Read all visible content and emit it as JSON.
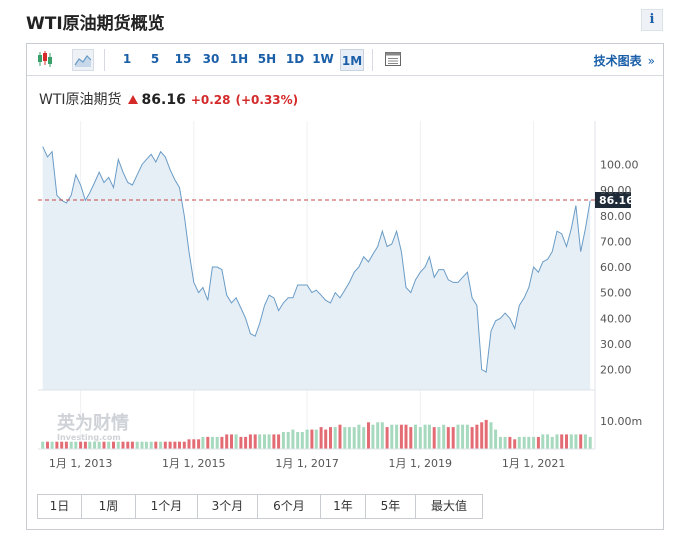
{
  "page": {
    "title": "WTI原油期货概览",
    "info_glyph": "i"
  },
  "toolbar": {
    "intervals": [
      "1",
      "5",
      "15",
      "30",
      "1H",
      "5H",
      "1D",
      "1W",
      "1M"
    ],
    "selected_interval": "1M",
    "tech_chart_label": "技术图表",
    "tech_chart_chevron": "»"
  },
  "quote": {
    "name": "WTI原油期货",
    "price": "86.16",
    "change": "+0.28",
    "change_pct": "(+0.33%)",
    "direction": "up",
    "up_color": "#d42a2a"
  },
  "watermark": {
    "logo_text": "英为财情",
    "sub_text": "Investing.com"
  },
  "ranges": [
    "1日",
    "1周",
    "1个月",
    "3个月",
    "6个月",
    "1年",
    "5年",
    "最大值"
  ],
  "chart_data": {
    "type": "area",
    "title": "",
    "xlabel": "",
    "ylabel": "",
    "ylim": [
      12,
      117
    ],
    "y_ticks": [
      "100.00",
      "90.00",
      "80.00",
      "70.00",
      "60.00",
      "50.00",
      "40.00",
      "30.00",
      "20.00"
    ],
    "y_tick_values": [
      100,
      90,
      80,
      70,
      60,
      50,
      40,
      30,
      20
    ],
    "x_tick_labels": [
      "1月 1, 2013",
      "1月 1, 2015",
      "1月 1, 2017",
      "1月 1, 2019",
      "1月 1, 2021"
    ],
    "x_tick_dates": [
      "2013-01-01",
      "2015-01-01",
      "2017-01-01",
      "2019-01-01",
      "2021-01-01"
    ],
    "x_range": [
      "2012-04-01",
      "2022-02-01"
    ],
    "price_series": {
      "dates": [
        "2012-05-01",
        "2012-06-01",
        "2012-07-01",
        "2012-08-01",
        "2012-09-01",
        "2012-10-01",
        "2012-11-01",
        "2012-12-01",
        "2013-01-01",
        "2013-02-01",
        "2013-03-01",
        "2013-04-01",
        "2013-05-01",
        "2013-06-01",
        "2013-07-01",
        "2013-08-01",
        "2013-09-01",
        "2013-10-01",
        "2013-11-01",
        "2013-12-01",
        "2014-01-01",
        "2014-02-01",
        "2014-03-01",
        "2014-04-01",
        "2014-05-01",
        "2014-06-01",
        "2014-07-01",
        "2014-08-01",
        "2014-09-01",
        "2014-10-01",
        "2014-11-01",
        "2014-12-01",
        "2015-01-01",
        "2015-02-01",
        "2015-03-01",
        "2015-04-01",
        "2015-05-01",
        "2015-06-01",
        "2015-07-01",
        "2015-08-01",
        "2015-09-01",
        "2015-10-01",
        "2015-11-01",
        "2015-12-01",
        "2016-01-01",
        "2016-02-01",
        "2016-03-01",
        "2016-04-01",
        "2016-05-01",
        "2016-06-01",
        "2016-07-01",
        "2016-08-01",
        "2016-09-01",
        "2016-10-01",
        "2016-11-01",
        "2016-12-01",
        "2017-01-01",
        "2017-02-01",
        "2017-03-01",
        "2017-04-01",
        "2017-05-01",
        "2017-06-01",
        "2017-07-01",
        "2017-08-01",
        "2017-09-01",
        "2017-10-01",
        "2017-11-01",
        "2017-12-01",
        "2018-01-01",
        "2018-02-01",
        "2018-03-01",
        "2018-04-01",
        "2018-05-01",
        "2018-06-01",
        "2018-07-01",
        "2018-08-01",
        "2018-09-01",
        "2018-10-01",
        "2018-11-01",
        "2018-12-01",
        "2019-01-01",
        "2019-02-01",
        "2019-03-01",
        "2019-04-01",
        "2019-05-01",
        "2019-06-01",
        "2019-07-01",
        "2019-08-01",
        "2019-09-01",
        "2019-10-01",
        "2019-11-01",
        "2019-12-01",
        "2020-01-01",
        "2020-02-01",
        "2020-03-01",
        "2020-04-01",
        "2020-05-01",
        "2020-06-01",
        "2020-07-01",
        "2020-08-01",
        "2020-09-01",
        "2020-10-01",
        "2020-11-01",
        "2020-12-01",
        "2021-01-01",
        "2021-02-01",
        "2021-03-01",
        "2021-04-01",
        "2021-05-01",
        "2021-06-01",
        "2021-07-01",
        "2021-08-01",
        "2021-09-01",
        "2021-10-01",
        "2021-11-01",
        "2021-12-01",
        "2022-01-01"
      ],
      "values": [
        107,
        103,
        105,
        88,
        86,
        85,
        88,
        96,
        92,
        86,
        89,
        93,
        97,
        93,
        95,
        91,
        102,
        97,
        93,
        92,
        96,
        100,
        102,
        104,
        101,
        105,
        103,
        98,
        94,
        91,
        80,
        66,
        54,
        50,
        52,
        47,
        60,
        60,
        59,
        49,
        46,
        48,
        44,
        40,
        34,
        33,
        38,
        45,
        49,
        48,
        43,
        46,
        48,
        48,
        53,
        53,
        53,
        50,
        51,
        49,
        47,
        46,
        50,
        48,
        51,
        54,
        58,
        60,
        64,
        62,
        65,
        68,
        74,
        68,
        69,
        74,
        66,
        52,
        50,
        55,
        58,
        60,
        64,
        56,
        59,
        59,
        55,
        54,
        54,
        56,
        58,
        48,
        45,
        20,
        19,
        35,
        39,
        40,
        42,
        40,
        36,
        45,
        48,
        52,
        60,
        58,
        62,
        63,
        66,
        74,
        73,
        68,
        75,
        84,
        66,
        75,
        86
      ]
    },
    "last_price_line": 86.16,
    "last_price_label": "86.16",
    "volume_series": {
      "axis_label": "10.00m",
      "values": [
        3,
        3,
        3,
        3,
        3,
        3,
        3,
        3,
        3,
        3,
        3,
        3,
        3,
        3,
        3,
        3,
        3,
        3,
        3,
        3,
        3,
        3,
        3,
        3,
        3,
        3,
        3,
        3,
        3,
        3,
        3,
        4,
        4,
        4,
        5,
        5,
        5,
        5,
        5,
        6,
        6,
        6,
        5,
        5,
        6,
        6,
        6,
        6,
        6,
        6,
        6,
        7,
        7,
        8,
        7,
        7,
        8,
        8,
        8,
        9,
        8,
        9,
        9,
        10,
        9,
        9,
        9,
        10,
        9,
        11,
        10,
        11,
        11,
        9,
        10,
        10,
        10,
        10,
        9,
        10,
        9,
        10,
        10,
        9,
        9,
        10,
        9,
        9,
        10,
        10,
        10,
        9,
        10,
        11,
        12,
        11,
        8,
        5,
        5,
        5,
        4,
        5,
        5,
        5,
        5,
        5,
        6,
        6,
        5,
        6,
        6,
        6,
        6,
        6,
        6,
        6,
        5
      ]
    },
    "colors": {
      "line": "#6a9cc6",
      "area": "#e6eef6",
      "price_line": "#c44a4a",
      "price_tag_bg": "#1e2a38",
      "volume_up": "#a6d9bd",
      "volume_down": "#e36b74"
    }
  }
}
